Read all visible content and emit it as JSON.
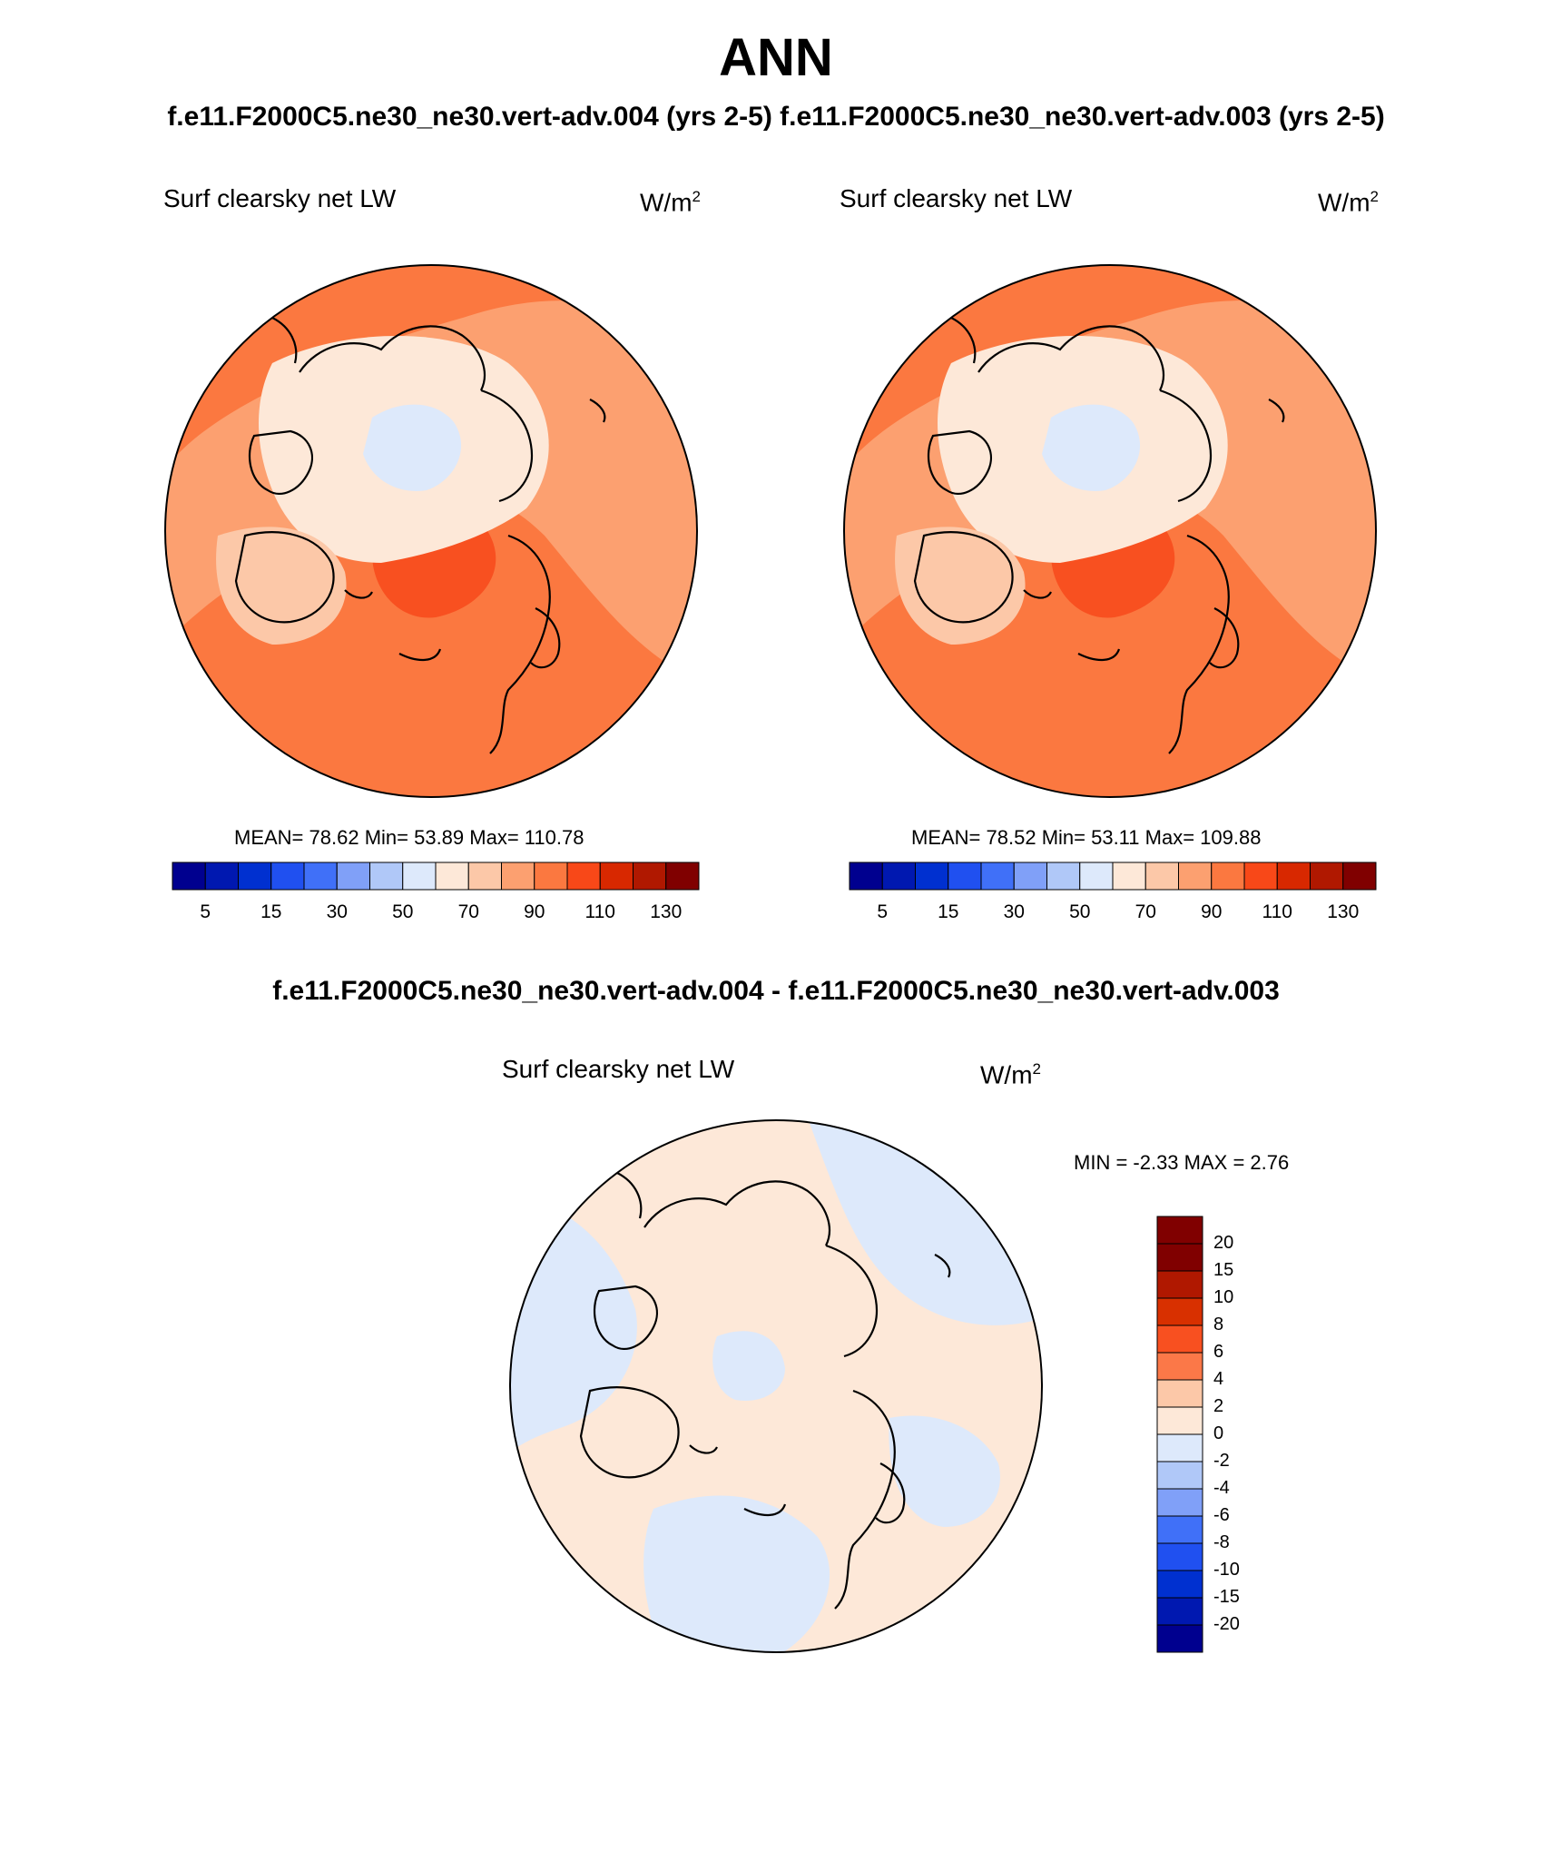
{
  "figure": {
    "title": "ANN",
    "case_title": "f.e11.F2000C5.ne30_ne30.vert-adv.004 (yrs 2-5)  f.e11.F2000C5.ne30_ne30.vert-adv.003 (yrs 2-5)",
    "diff_title": "f.e11.F2000C5.ne30_ne30.vert-adv.004 - f.e11.F2000C5.ne30_ne30.vert-adv.003"
  },
  "panels": [
    {
      "variable": "Surf clearsky net LW",
      "units_base": "W/m",
      "units_exp": "2",
      "stats": "MEAN=  78.62  Min=  53.89  Max= 110.78"
    },
    {
      "variable": "Surf clearsky net LW",
      "units_base": "W/m",
      "units_exp": "2",
      "stats": "MEAN=  78.52  Min=  53.11  Max= 109.88"
    },
    {
      "variable": "Surf clearsky net LW",
      "units_base": "W/m",
      "units_exp": "2",
      "stats": "MIN =  -2.33 MAX =   2.76"
    }
  ],
  "abs_colorbar": {
    "colors": [
      "#00008f",
      "#0018b0",
      "#0030d0",
      "#2050f0",
      "#4070f8",
      "#80a0f8",
      "#b0c8f8",
      "#dde9fb",
      "#fde8d8",
      "#fcc8a8",
      "#fca070",
      "#fb7840",
      "#f84818",
      "#d82800",
      "#b01800",
      "#800000"
    ],
    "labels": [
      "5",
      "15",
      "30",
      "50",
      "70",
      "90",
      "110",
      "130"
    ]
  },
  "diff_colorbar": {
    "colors": [
      "#800000",
      "#b01800",
      "#d83000",
      "#f85020",
      "#fb7848",
      "#fcc8a8",
      "#fde8d8",
      "#dde9fb",
      "#b0c8f8",
      "#80a0f8",
      "#4070f8",
      "#2050f0",
      "#0030d0",
      "#0018b0",
      "#00008f"
    ],
    "labels": [
      "20",
      "15",
      "10",
      "8",
      "6",
      "4",
      "2",
      "0",
      "-2",
      "-4",
      "-6",
      "-8",
      "-10",
      "-15",
      "-20"
    ]
  }
}
